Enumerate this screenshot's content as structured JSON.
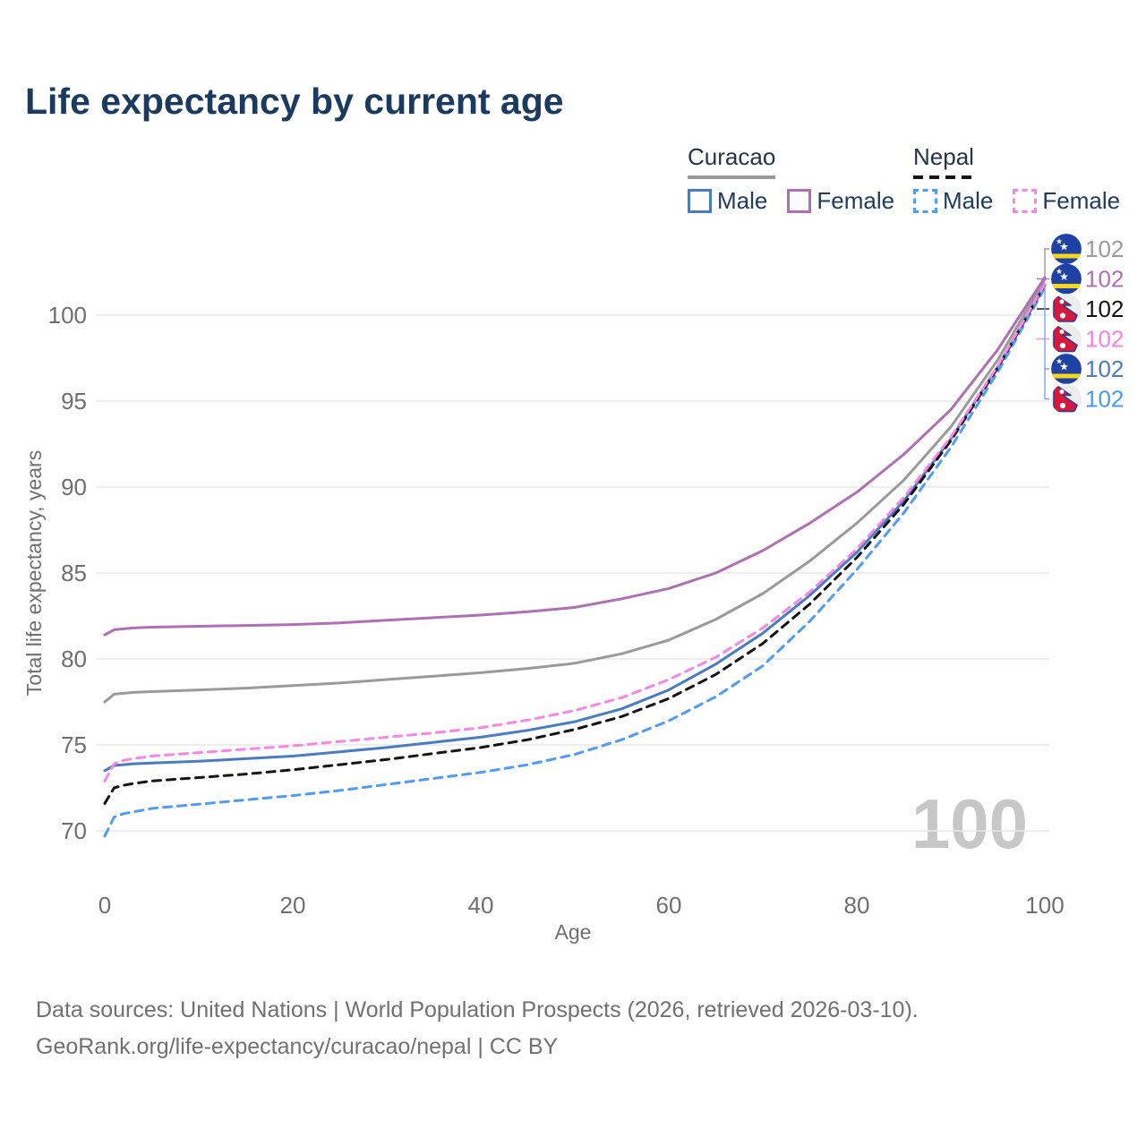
{
  "title": "Life expectancy by current age",
  "legend": {
    "groups": [
      {
        "country": "Curacao",
        "underline_style": "solid",
        "underline_color": "#9a9a9a",
        "items": [
          {
            "label": "Male",
            "color": "#4a7cc1",
            "dash": "solid"
          },
          {
            "label": "Female",
            "color": "#b06fb4",
            "dash": "solid"
          }
        ]
      },
      {
        "country": "Nepal",
        "underline_style": "dashed",
        "underline_color": "#141414",
        "items": [
          {
            "label": "Male",
            "color": "#4f9cf7",
            "dash": "dashed"
          },
          {
            "label": "Female",
            "color": "#fb85e6",
            "dash": "dashed"
          }
        ]
      }
    ]
  },
  "chart_data": {
    "type": "line",
    "title": "Life expectancy by current age",
    "xlabel": "Age",
    "ylabel": "Total life expectancy, years",
    "x_ticks": [
      0,
      20,
      40,
      60,
      80,
      100
    ],
    "y_ticks": [
      70,
      75,
      80,
      85,
      90,
      95,
      100
    ],
    "xlim": [
      0,
      100
    ],
    "ylim": [
      68,
      103
    ],
    "grid": "horizontal-only",
    "watermark": "100",
    "x": [
      0,
      1,
      2,
      3,
      5,
      10,
      15,
      20,
      25,
      30,
      35,
      40,
      45,
      50,
      55,
      60,
      65,
      70,
      75,
      80,
      85,
      90,
      95,
      100
    ],
    "series": [
      {
        "name": "Curacao",
        "sex": "both",
        "flag": "curacao",
        "color": "#9a9a9a",
        "label_color": "#9a9a9a",
        "dash": "solid",
        "end_label": "102",
        "values": [
          77.5,
          77.95,
          78.0,
          78.05,
          78.1,
          78.2,
          78.3,
          78.45,
          78.6,
          78.8,
          79.0,
          79.2,
          79.45,
          79.75,
          80.3,
          81.1,
          82.3,
          83.8,
          85.7,
          87.9,
          90.4,
          93.5,
          97.4,
          102.1
        ]
      },
      {
        "name": "Curacao Female",
        "sex": "female",
        "flag": "curacao",
        "color": "#b06fb4",
        "label_color": "#b06fb4",
        "dash": "solid",
        "end_label": "102",
        "values": [
          81.4,
          81.7,
          81.75,
          81.8,
          81.85,
          81.9,
          81.95,
          82.0,
          82.1,
          82.25,
          82.4,
          82.55,
          82.75,
          83.0,
          83.5,
          84.1,
          85.0,
          86.3,
          87.9,
          89.7,
          91.9,
          94.5,
          98.0,
          102.2
        ]
      },
      {
        "name": "Nepal",
        "sex": "both",
        "flag": "nepal",
        "color": "#141414",
        "label_color": "#141414",
        "dash": "dashed",
        "end_label": "102",
        "values": [
          71.6,
          72.5,
          72.65,
          72.75,
          72.9,
          73.1,
          73.3,
          73.55,
          73.85,
          74.15,
          74.5,
          74.85,
          75.3,
          75.9,
          76.65,
          77.7,
          79.1,
          80.9,
          83.2,
          85.9,
          89.0,
          92.7,
          96.95,
          101.75
        ]
      },
      {
        "name": "Nepal Female",
        "sex": "female",
        "flag": "nepal",
        "color": "#fb85e6",
        "label_color": "#fb80e4",
        "dash": "dashed",
        "end_label": "102",
        "values": [
          72.9,
          73.9,
          74.1,
          74.2,
          74.35,
          74.55,
          74.75,
          74.95,
          75.2,
          75.45,
          75.7,
          76.0,
          76.45,
          77.0,
          77.75,
          78.8,
          80.1,
          81.8,
          83.9,
          86.4,
          89.4,
          92.9,
          97.05,
          101.8
        ]
      },
      {
        "name": "Curacao Male",
        "sex": "male",
        "flag": "curacao",
        "color": "#4a7cc1",
        "label_color": "#4a7cc1",
        "dash": "solid",
        "end_label": "102",
        "values": [
          73.5,
          73.8,
          73.85,
          73.9,
          73.95,
          74.05,
          74.2,
          74.35,
          74.6,
          74.85,
          75.15,
          75.45,
          75.85,
          76.35,
          77.1,
          78.2,
          79.7,
          81.5,
          83.7,
          86.2,
          89.2,
          92.8,
          97.0,
          101.8
        ]
      },
      {
        "name": "Nepal Male",
        "sex": "male",
        "flag": "nepal",
        "color": "#4f9cf7",
        "label_color": "#4b98f2",
        "dash": "dashed",
        "end_label": "102",
        "values": [
          69.7,
          70.8,
          71.0,
          71.1,
          71.3,
          71.55,
          71.8,
          72.05,
          72.35,
          72.7,
          73.05,
          73.4,
          73.85,
          74.45,
          75.3,
          76.4,
          77.8,
          79.6,
          82.2,
          85.2,
          88.5,
          92.3,
          96.7,
          101.6
        ]
      }
    ]
  },
  "footer": {
    "line1": "Data sources: United Nations | World Population Prospects (2026, retrieved 2026-03-10).",
    "line2": "GeoRank.org/life-expectancy/curacao/nepal | CC BY"
  }
}
